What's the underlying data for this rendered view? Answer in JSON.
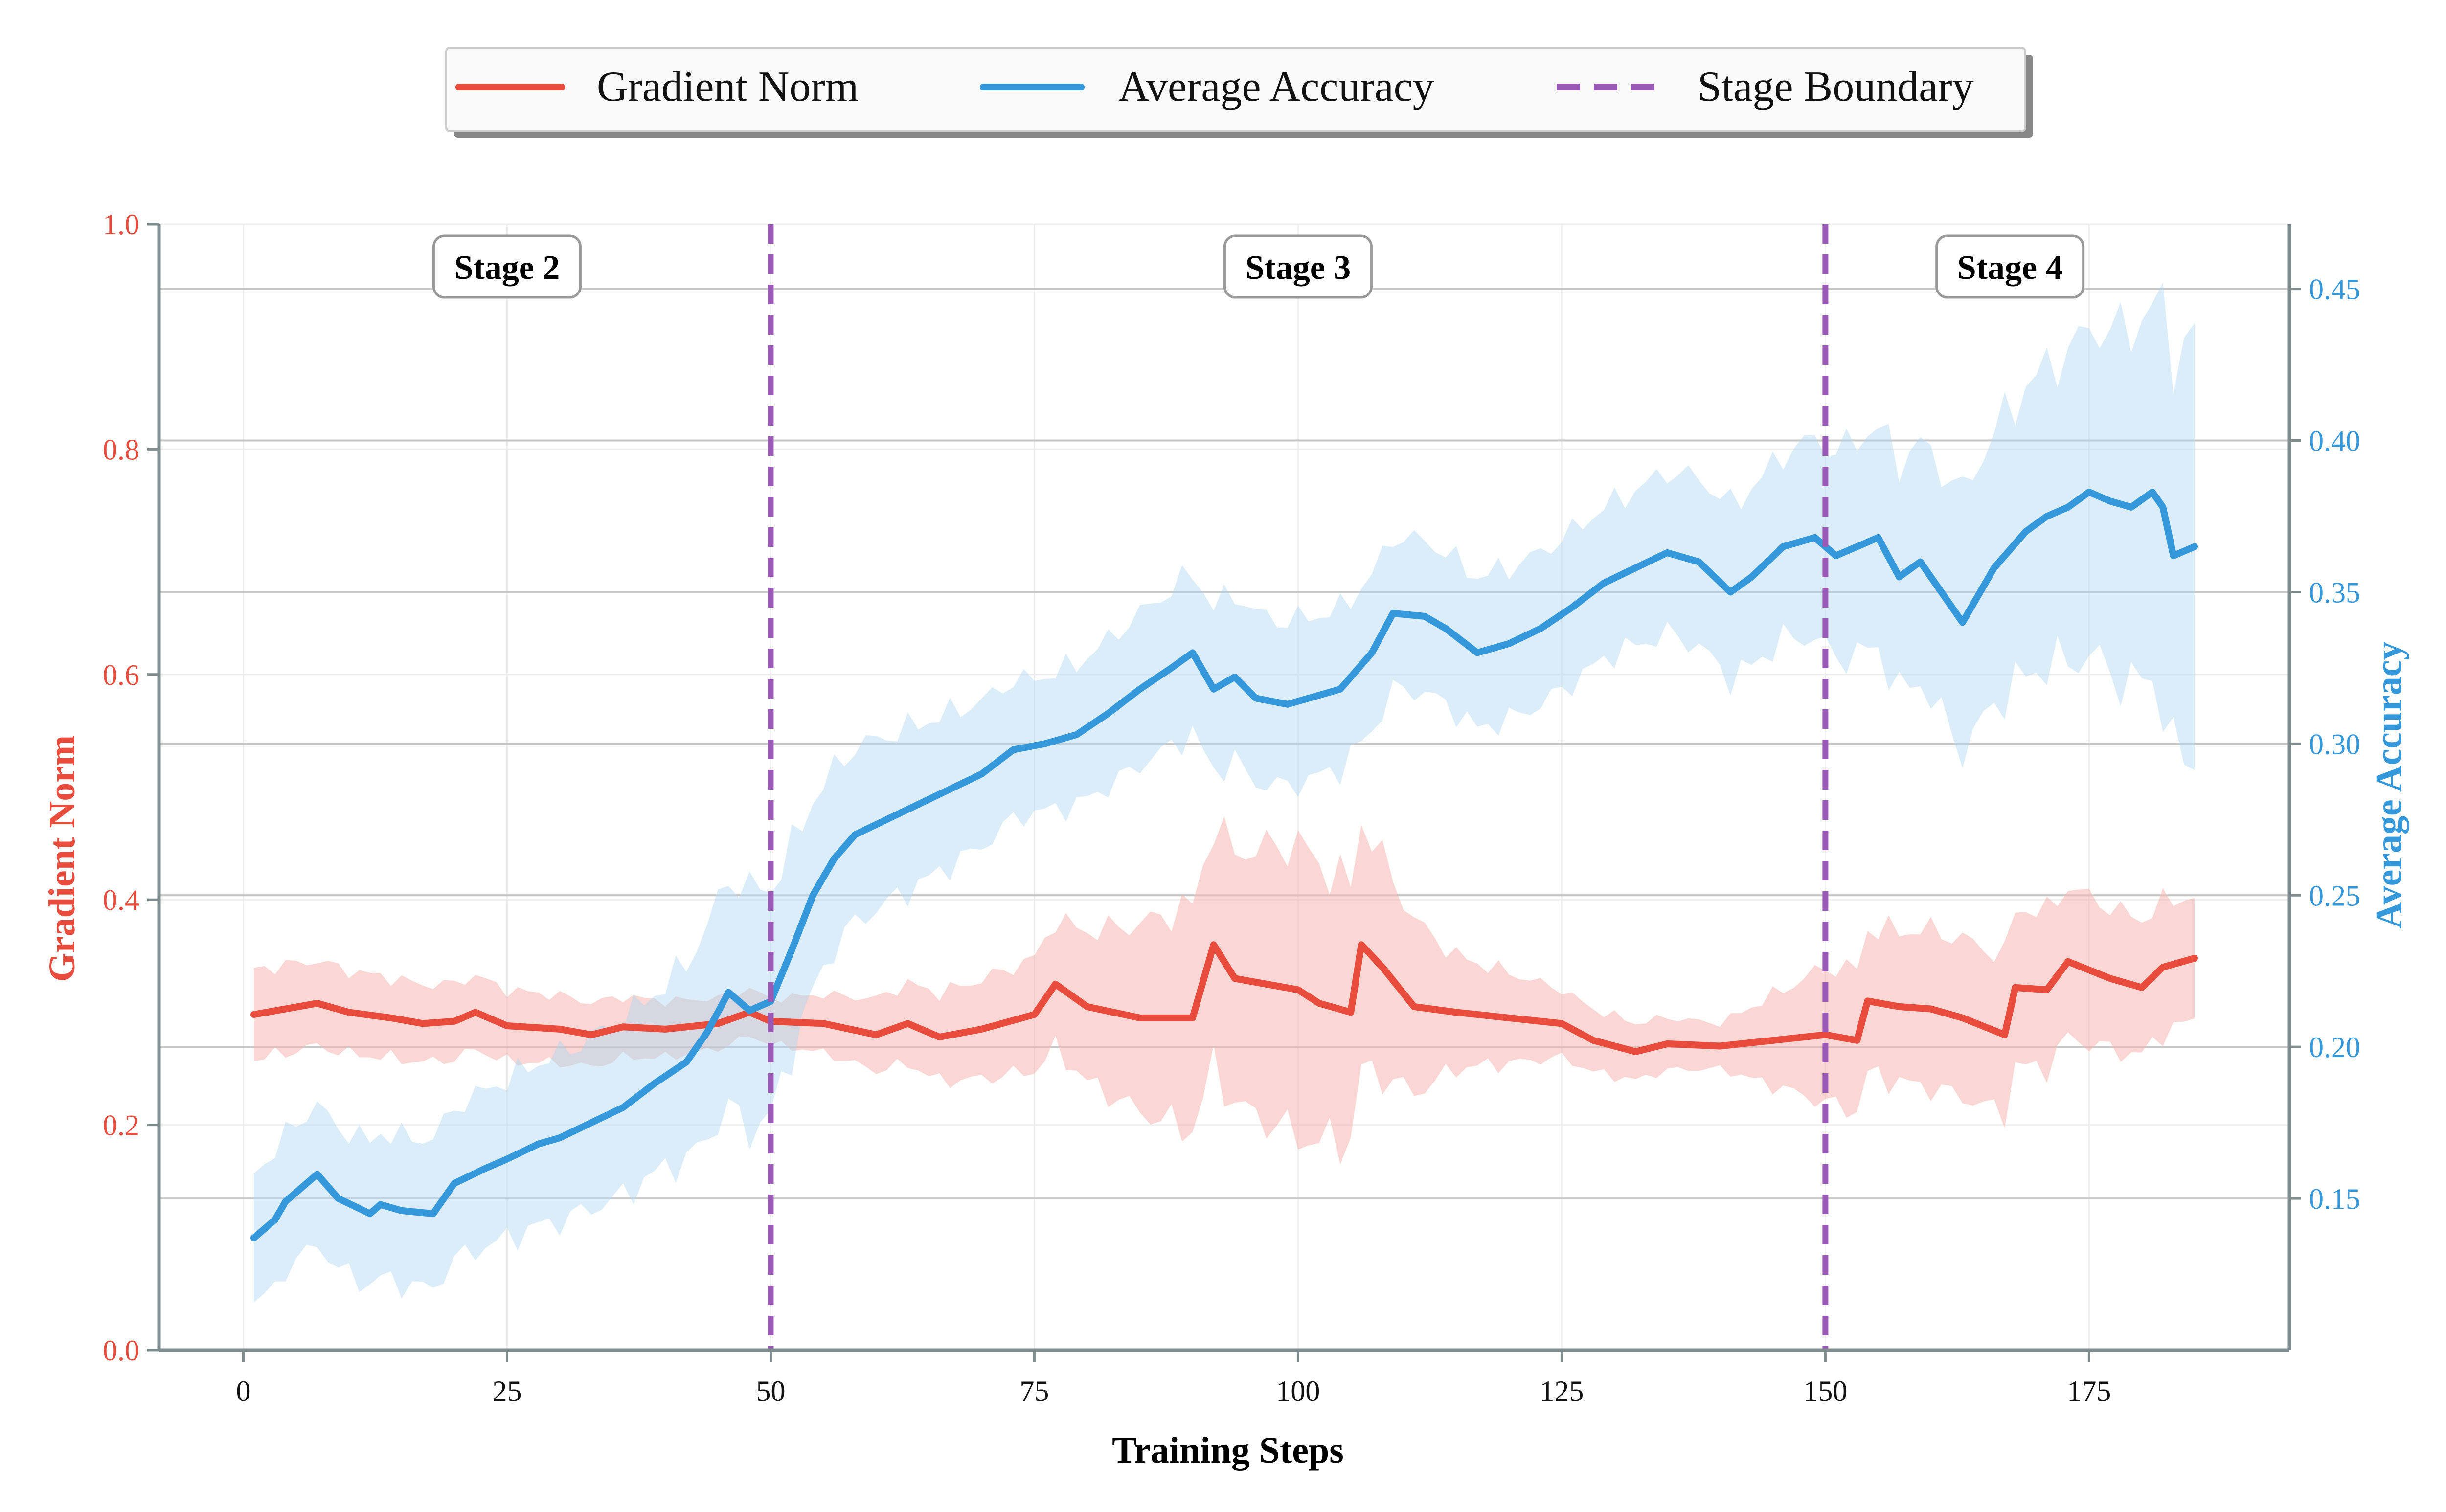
{
  "colors": {
    "gradient": "#e74c3c",
    "accuracy": "#3498db",
    "boundary": "#9b59b6",
    "gradient_band": "#f5b7b1",
    "accuracy_band": "#aed6f1",
    "axis": "#7f8c8d",
    "grid": "#c8c8c8"
  },
  "legend": {
    "items": [
      {
        "label": "Gradient Norm",
        "color": "#e74c3c",
        "style": "solid"
      },
      {
        "label": "Average Accuracy",
        "color": "#3498db",
        "style": "solid"
      },
      {
        "label": "Stage Boundary",
        "color": "#9b59b6",
        "style": "dashed"
      }
    ]
  },
  "chart_data": {
    "type": "line",
    "title": "",
    "xlabel": "Training Steps",
    "ylabel_left": "Gradient Norm",
    "ylabel_right": "Average Accuracy",
    "xlim": [
      -8,
      194
    ],
    "ylim_left": [
      0.0,
      1.0
    ],
    "ylim_right": [
      0.1,
      0.4714
    ],
    "xticks": [
      0,
      25,
      50,
      75,
      100,
      125,
      150,
      175
    ],
    "xtick_labels": [
      "0",
      "25",
      "50",
      "75",
      "100",
      "125",
      "150",
      "175"
    ],
    "yticks_left": [
      0.0,
      0.2,
      0.4,
      0.6,
      0.8,
      1.0
    ],
    "ytick_labels_left": [
      "0.0",
      "0.2",
      "0.4",
      "0.6",
      "0.8",
      "1.0"
    ],
    "yticks_right": [
      0.15,
      0.2,
      0.25,
      0.3,
      0.35,
      0.4,
      0.45
    ],
    "ytick_labels_right": [
      "0.15",
      "0.20",
      "0.25",
      "0.30",
      "0.35",
      "0.40",
      "0.45"
    ],
    "stage_boundaries": [
      50,
      150
    ],
    "stage_labels": [
      {
        "text": "Stage 2",
        "x": 25
      },
      {
        "text": "Stage 3",
        "x": 100
      },
      {
        "text": "Stage 4",
        "x": 167.5
      }
    ],
    "grid": true,
    "legend_position": "top-center",
    "series": [
      {
        "name": "Gradient Norm",
        "axis": "left",
        "band": "+/- 0.05 to 0.15 (shaded)",
        "points": [
          [
            1,
            0.298
          ],
          [
            4,
            0.303
          ],
          [
            7,
            0.308
          ],
          [
            10,
            0.3
          ],
          [
            14,
            0.295
          ],
          [
            17,
            0.29
          ],
          [
            20,
            0.292
          ],
          [
            22,
            0.3
          ],
          [
            25,
            0.288
          ],
          [
            30,
            0.285
          ],
          [
            33,
            0.28
          ],
          [
            36,
            0.287
          ],
          [
            40,
            0.285
          ],
          [
            45,
            0.29
          ],
          [
            48,
            0.3
          ],
          [
            50,
            0.292
          ],
          [
            55,
            0.29
          ],
          [
            60,
            0.28
          ],
          [
            63,
            0.29
          ],
          [
            66,
            0.278
          ],
          [
            70,
            0.285
          ],
          [
            75,
            0.298
          ],
          [
            77,
            0.325
          ],
          [
            80,
            0.305
          ],
          [
            85,
            0.295
          ],
          [
            90,
            0.295
          ],
          [
            92,
            0.36
          ],
          [
            94,
            0.33
          ],
          [
            97,
            0.325
          ],
          [
            100,
            0.32
          ],
          [
            102,
            0.308
          ],
          [
            105,
            0.3
          ],
          [
            106,
            0.36
          ],
          [
            108,
            0.34
          ],
          [
            111,
            0.305
          ],
          [
            115,
            0.3
          ],
          [
            120,
            0.295
          ],
          [
            125,
            0.29
          ],
          [
            128,
            0.275
          ],
          [
            132,
            0.265
          ],
          [
            135,
            0.272
          ],
          [
            140,
            0.27
          ],
          [
            145,
            0.275
          ],
          [
            150,
            0.28
          ],
          [
            153,
            0.275
          ],
          [
            154,
            0.31
          ],
          [
            157,
            0.305
          ],
          [
            160,
            0.303
          ],
          [
            163,
            0.295
          ],
          [
            167,
            0.28
          ],
          [
            168,
            0.322
          ],
          [
            171,
            0.32
          ],
          [
            173,
            0.345
          ],
          [
            177,
            0.33
          ],
          [
            180,
            0.322
          ],
          [
            182,
            0.34
          ],
          [
            185,
            0.348
          ]
        ],
        "band_half_width": [
          [
            1,
            0.04
          ],
          [
            30,
            0.03
          ],
          [
            50,
            0.02
          ],
          [
            75,
            0.05
          ],
          [
            90,
            0.1
          ],
          [
            100,
            0.13
          ],
          [
            106,
            0.11
          ],
          [
            115,
            0.05
          ],
          [
            125,
            0.03
          ],
          [
            140,
            0.02
          ],
          [
            150,
            0.06
          ],
          [
            160,
            0.07
          ],
          [
            170,
            0.07
          ],
          [
            185,
            0.055
          ]
        ]
      },
      {
        "name": "Average Accuracy",
        "axis": "right",
        "band": "shaded variability",
        "points": [
          [
            1,
            0.137
          ],
          [
            3,
            0.143
          ],
          [
            4,
            0.149
          ],
          [
            6,
            0.155
          ],
          [
            7,
            0.158
          ],
          [
            9,
            0.15
          ],
          [
            12,
            0.145
          ],
          [
            13,
            0.148
          ],
          [
            15,
            0.146
          ],
          [
            18,
            0.145
          ],
          [
            20,
            0.155
          ],
          [
            23,
            0.16
          ],
          [
            25,
            0.163
          ],
          [
            28,
            0.168
          ],
          [
            30,
            0.17
          ],
          [
            33,
            0.175
          ],
          [
            36,
            0.18
          ],
          [
            39,
            0.188
          ],
          [
            42,
            0.195
          ],
          [
            44,
            0.205
          ],
          [
            46,
            0.218
          ],
          [
            48,
            0.212
          ],
          [
            50,
            0.215
          ],
          [
            52,
            0.232
          ],
          [
            54,
            0.25
          ],
          [
            56,
            0.262
          ],
          [
            58,
            0.27
          ],
          [
            61,
            0.275
          ],
          [
            64,
            0.28
          ],
          [
            67,
            0.285
          ],
          [
            70,
            0.29
          ],
          [
            73,
            0.298
          ],
          [
            76,
            0.3
          ],
          [
            79,
            0.303
          ],
          [
            82,
            0.31
          ],
          [
            85,
            0.318
          ],
          [
            88,
            0.325
          ],
          [
            90,
            0.33
          ],
          [
            92,
            0.318
          ],
          [
            94,
            0.322
          ],
          [
            96,
            0.315
          ],
          [
            99,
            0.313
          ],
          [
            101,
            0.315
          ],
          [
            104,
            0.318
          ],
          [
            107,
            0.33
          ],
          [
            109,
            0.343
          ],
          [
            112,
            0.342
          ],
          [
            114,
            0.338
          ],
          [
            117,
            0.33
          ],
          [
            120,
            0.333
          ],
          [
            123,
            0.338
          ],
          [
            126,
            0.345
          ],
          [
            129,
            0.353
          ],
          [
            132,
            0.358
          ],
          [
            135,
            0.363
          ],
          [
            138,
            0.36
          ],
          [
            141,
            0.35
          ],
          [
            143,
            0.355
          ],
          [
            146,
            0.365
          ],
          [
            149,
            0.368
          ],
          [
            151,
            0.362
          ],
          [
            153,
            0.365
          ],
          [
            155,
            0.368
          ],
          [
            157,
            0.355
          ],
          [
            159,
            0.36
          ],
          [
            161,
            0.35
          ],
          [
            163,
            0.34
          ],
          [
            166,
            0.358
          ],
          [
            169,
            0.37
          ],
          [
            171,
            0.375
          ],
          [
            173,
            0.378
          ],
          [
            175,
            0.383
          ],
          [
            177,
            0.38
          ],
          [
            179,
            0.378
          ],
          [
            181,
            0.383
          ],
          [
            182,
            0.378
          ],
          [
            183,
            0.362
          ],
          [
            185,
            0.365
          ]
        ],
        "band_half_width": [
          [
            1,
            0.022
          ],
          [
            20,
            0.025
          ],
          [
            40,
            0.03
          ],
          [
            48,
            0.04
          ],
          [
            55,
            0.03
          ],
          [
            75,
            0.022
          ],
          [
            95,
            0.028
          ],
          [
            110,
            0.025
          ],
          [
            130,
            0.025
          ],
          [
            145,
            0.03
          ],
          [
            160,
            0.04
          ],
          [
            172,
            0.05
          ],
          [
            180,
            0.06
          ],
          [
            185,
            0.07
          ]
        ]
      }
    ]
  }
}
